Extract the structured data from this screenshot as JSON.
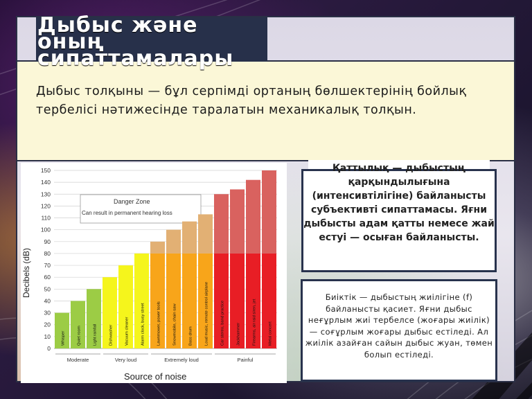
{
  "slide": {
    "title": "Дыбыс және оның сипаттамалары",
    "definition": "Дыбыс толқыны — бұл серпімді ортаның бөлшектерінің бойлық тербелісі нәтижесінде таралатын механикалық толқын.",
    "loudness_card": "Қаттылық — дыбыстың қарқындылығына (интенсивтілігіне) байланысты субъективті сипаттамасы. Яғни дыбысты адам қатты немесе жай естуі — осыған байланысты.",
    "pitch_card": "Биіктік — дыбыстың жиілігіне (f) байланысты қасиет. Яғни дыбыс неғұрлым жиі тербелсе (жоғары жиілік) — соғұрлым жоғары дыбыс естіледі. Ал жиілік азайған сайын дыбыс жуан, төмен болып естіледі."
  },
  "chart_data": {
    "type": "bar",
    "ylabel": "Decibels (dB)",
    "xlabel": "Source of noise",
    "ylim": [
      0,
      150
    ],
    "yticks": [
      0,
      10,
      20,
      30,
      40,
      50,
      60,
      70,
      80,
      90,
      100,
      110,
      120,
      130,
      140,
      150
    ],
    "grid": true,
    "categories": [
      "Whisper",
      "Quiet room",
      "Light rainfall",
      "Dishwasher",
      "Vacuum cleaner",
      "Alarm clock, busy street",
      "Lawnmower, power tools",
      "Snowmobile, chain saw",
      "Bass drum",
      "Loud music, remote control airplane",
      "Car stereo, band practice",
      "Jackhammer",
      "Firearms, air raid siren, jet",
      "Metal concert"
    ],
    "values": [
      30,
      40,
      50,
      60,
      70,
      80,
      90,
      100,
      107,
      113,
      130,
      134,
      142,
      150
    ],
    "colors": [
      "#9ccc45",
      "#9ccc45",
      "#9ccc45",
      "#f5f51c",
      "#f5f51c",
      "#f5f51c",
      "#f8a51a",
      "#f8a51a",
      "#f8a51a",
      "#f8a51a",
      "#e81e25",
      "#e81e25",
      "#e81e25",
      "#e81e25"
    ],
    "upper_colors": [
      "",
      "",
      "",
      "",
      "",
      "",
      "#e2b074",
      "#e2b074",
      "#e2b074",
      "#e2b074",
      "#d9625f",
      "#d9625f",
      "#d9625f",
      "#d9625f"
    ],
    "danger_threshold": 80,
    "annotation": {
      "title": "Danger Zone",
      "subtitle": "Can result in permanent hearing loss"
    },
    "groups": [
      {
        "label": "Moderate",
        "from": 0,
        "to": 2
      },
      {
        "label": "Very loud",
        "from": 3,
        "to": 5
      },
      {
        "label": "Extremely loud",
        "from": 6,
        "to": 9
      },
      {
        "label": "Painful",
        "from": 10,
        "to": 13
      }
    ]
  }
}
